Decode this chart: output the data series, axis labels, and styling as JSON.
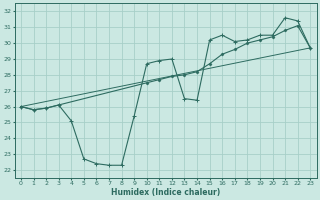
{
  "xlabel": "Humidex (Indice chaleur)",
  "xlim": [
    -0.5,
    23.5
  ],
  "ylim": [
    21.5,
    32.5
  ],
  "xticks": [
    0,
    1,
    2,
    3,
    4,
    5,
    6,
    7,
    8,
    9,
    10,
    11,
    12,
    13,
    14,
    15,
    16,
    17,
    18,
    19,
    20,
    21,
    22,
    23
  ],
  "yticks": [
    22,
    23,
    24,
    25,
    26,
    27,
    28,
    29,
    30,
    31,
    32
  ],
  "bg_color": "#cbe8e2",
  "grid_color": "#a8cfc8",
  "line_color": "#2d6b60",
  "line1_x": [
    0,
    1,
    2,
    3,
    4,
    5,
    6,
    7,
    8,
    9,
    10,
    11,
    12,
    13,
    14,
    15,
    16,
    17,
    18,
    19,
    20,
    21,
    22,
    23
  ],
  "line1_y": [
    26.0,
    25.8,
    25.9,
    26.1,
    25.1,
    22.7,
    22.4,
    22.3,
    22.3,
    25.4,
    28.7,
    28.9,
    29.0,
    26.5,
    26.4,
    30.2,
    30.5,
    30.1,
    30.2,
    30.5,
    30.5,
    31.6,
    31.4,
    29.7
  ],
  "line2_x": [
    0,
    23
  ],
  "line2_y": [
    26.0,
    29.7
  ],
  "line3_x": [
    0,
    1,
    2,
    3,
    10,
    11,
    12,
    13,
    14,
    15,
    16,
    17,
    18,
    19,
    20,
    21,
    22,
    23
  ],
  "line3_y": [
    26.0,
    25.8,
    25.9,
    26.1,
    27.5,
    27.7,
    27.9,
    28.0,
    28.2,
    28.7,
    29.3,
    29.6,
    30.0,
    30.2,
    30.4,
    30.8,
    31.1,
    29.7
  ]
}
